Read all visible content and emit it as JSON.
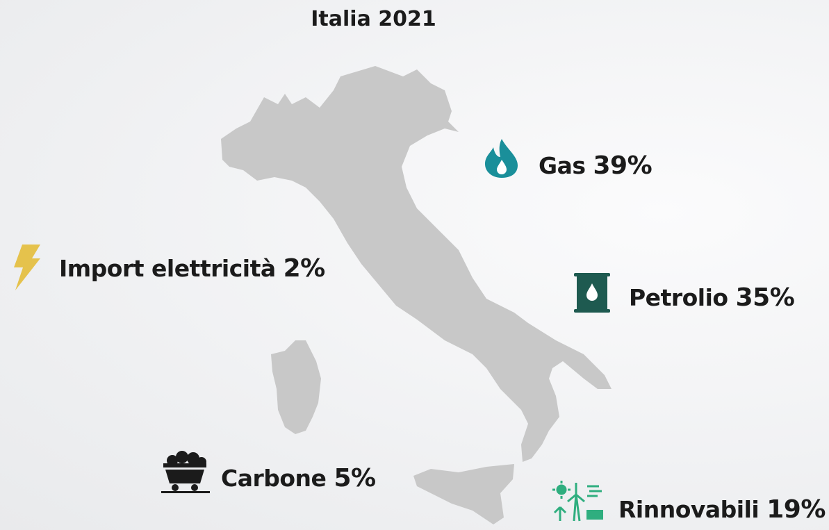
{
  "title": "Italia 2021",
  "items": [
    {
      "name": "Gas",
      "share": "39%"
    },
    {
      "name": "Import elettricità",
      "share": "2%"
    },
    {
      "name": "Petrolio",
      "share": "35%"
    },
    {
      "name": "Carbone",
      "share": "5%"
    },
    {
      "name": "Rinnovabili",
      "share": "19%"
    }
  ]
}
